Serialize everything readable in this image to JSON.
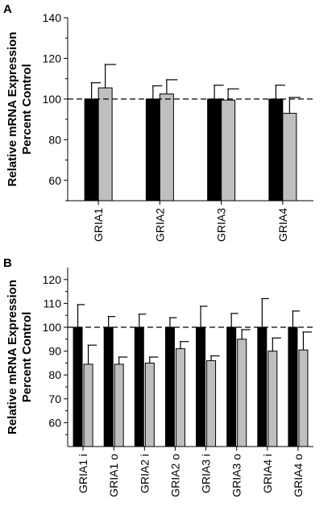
{
  "chart_data": [
    {
      "panel_label": "A",
      "type": "bar",
      "ylabel_line1": "Relative mRNA Expression",
      "ylabel_line2": "Percent Control",
      "ylim": [
        50,
        140
      ],
      "yticks": [
        60,
        80,
        100,
        120,
        140
      ],
      "reference_line": 100,
      "categories": [
        "GRIA1",
        "GRIA2",
        "GRIA3",
        "GRIA4"
      ],
      "series": [
        {
          "color": "#000000",
          "values": [
            100,
            100,
            100,
            100
          ],
          "errors": [
            8,
            6.5,
            6.8,
            6.8
          ]
        },
        {
          "color": "#bfbfbf",
          "values": [
            105.5,
            102.5,
            99.5,
            93
          ],
          "errors": [
            11.5,
            7,
            5.5,
            7.8
          ]
        }
      ]
    },
    {
      "panel_label": "B",
      "type": "bar",
      "ylabel_line1": "Relative mRNA Expression",
      "ylabel_line2": "Percent Control",
      "ylim": [
        50,
        125
      ],
      "yticks": [
        60,
        70,
        80,
        90,
        100,
        110,
        120
      ],
      "reference_line": 100,
      "categories": [
        "GRIA1 i",
        "GRIA1 o",
        "GRIA2 i",
        "GRIA2 o",
        "GRIA3 i",
        "GRIA3 o",
        "GRIA4 i",
        "GRIA4 o"
      ],
      "series": [
        {
          "color": "#000000",
          "values": [
            100,
            100,
            100,
            100,
            100,
            100,
            100,
            100
          ],
          "errors": [
            9.5,
            4.5,
            5.5,
            4,
            8.8,
            5.8,
            12,
            6.8
          ]
        },
        {
          "color": "#bfbfbf",
          "values": [
            84.5,
            84.5,
            85,
            91,
            86,
            95,
            90,
            90.5
          ],
          "errors": [
            8,
            3,
            2.5,
            3,
            2,
            4,
            5.5,
            7.5
          ]
        }
      ]
    }
  ]
}
